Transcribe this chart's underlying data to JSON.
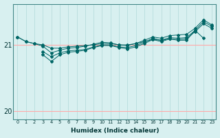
{
  "xlabel": "Humidex (Indice chaleur)",
  "bg_color": "#d8f0f0",
  "grid_color": "#b0d8d8",
  "red_line_color": "#ffaaaa",
  "line_color": "#006666",
  "x": [
    0,
    1,
    2,
    3,
    4,
    5,
    6,
    7,
    8,
    9,
    10,
    11,
    12,
    13,
    14,
    15,
    16,
    17,
    18,
    19,
    20,
    21,
    22,
    23
  ],
  "line1": [
    21.12,
    21.05,
    21.02,
    21.0,
    20.95,
    20.95,
    20.97,
    20.98,
    20.99,
    21.0,
    21.02,
    21.02,
    21.0,
    21.0,
    21.02,
    21.05,
    21.08,
    21.07,
    21.09,
    21.07,
    21.07,
    21.22,
    21.1,
    null
  ],
  "line2": [
    21.12,
    21.05,
    21.02,
    20.98,
    20.88,
    20.92,
    20.95,
    20.96,
    20.98,
    21.01,
    21.04,
    21.03,
    21.0,
    20.99,
    21.02,
    21.07,
    21.12,
    21.1,
    21.14,
    21.15,
    21.16,
    21.25,
    21.38,
    21.3
  ],
  "line3": [
    null,
    null,
    null,
    20.9,
    20.82,
    20.88,
    20.91,
    20.92,
    20.93,
    20.97,
    21.0,
    21.0,
    20.97,
    20.96,
    20.99,
    21.04,
    21.1,
    21.07,
    21.11,
    21.1,
    21.11,
    21.22,
    21.35,
    21.28
  ],
  "line4": [
    null,
    null,
    null,
    20.85,
    20.75,
    20.85,
    20.89,
    20.9,
    20.92,
    20.96,
    20.99,
    20.99,
    20.96,
    20.94,
    20.97,
    21.02,
    21.08,
    21.05,
    21.09,
    21.08,
    21.09,
    21.2,
    21.32,
    21.25
  ],
  "ylim": [
    19.88,
    21.62
  ],
  "yticks": [
    20,
    21
  ],
  "xlim": [
    -0.5,
    23.5
  ]
}
